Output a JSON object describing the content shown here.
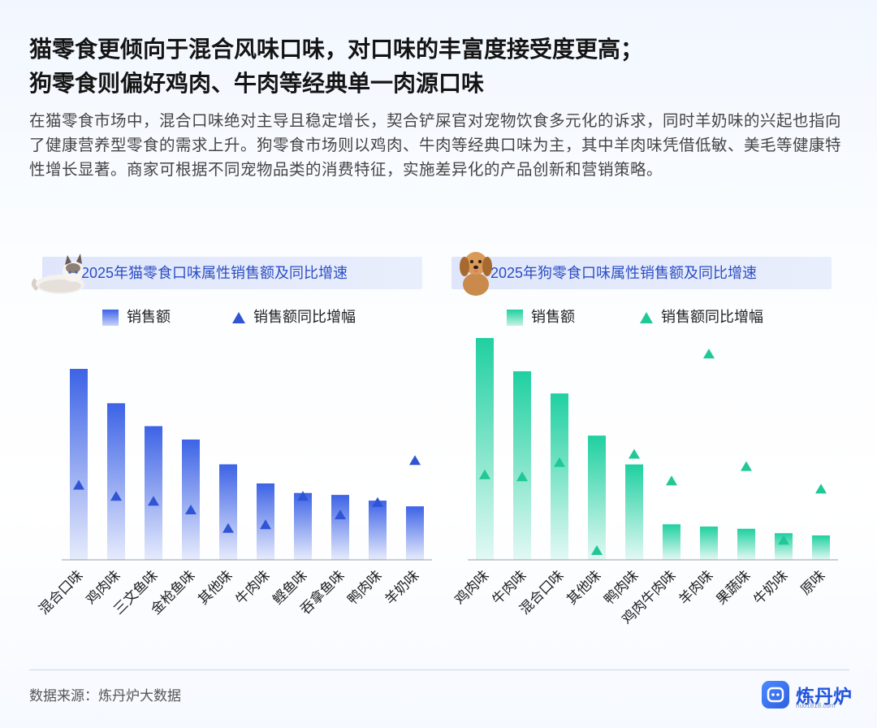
{
  "title_line1": "猫零食更倾向于混合风味口味，对口味的丰富度接受度更高；",
  "title_line2": "狗零食则偏好鸡肉、牛肉等经典单一肉源口味",
  "description": "在猫零食市场中，混合口味绝对主导且稳定增长，契合铲屎官对宠物饮食多元化的诉求，同时羊奶味的兴起也指向了健康营养型零食的需求上升。狗零食市场则以鸡肉、牛肉等经典口味为主，其中羊肉味凭借低敏、美毛等健康特性增长显著。商家可根据不同宠物品类的消费特征，实施差异化的产品创新和营销策略。",
  "source": "数据来源：炼丹炉大数据",
  "logo_text": "炼丹炉",
  "logo_url": "huo1818.com",
  "colors": {
    "cat_bar": "#3d63e6",
    "dog_bar": "#1fd0a0",
    "cat_marker": "#2f55d4",
    "dog_marker": "#20c896"
  },
  "chart_data": [
    {
      "type": "bar",
      "title": "2025年猫零食口味属性销售额及同比增速",
      "categories": [
        "混合口味",
        "鸡肉味",
        "三文鱼味",
        "金枪鱼味",
        "其他味",
        "牛肉味",
        "鲣鱼味",
        "吞拿鱼味",
        "鸭肉味",
        "羊奶味"
      ],
      "series": [
        {
          "name": "销售额",
          "kind": "bar",
          "values": [
            100,
            82,
            70,
            63,
            50,
            40,
            35,
            34,
            31,
            28
          ]
        },
        {
          "name": "销售额同比增幅",
          "kind": "marker",
          "values": [
            45,
            36,
            32,
            25,
            10,
            13,
            36,
            21,
            31,
            65
          ]
        }
      ],
      "legend": "top",
      "grid": false
    },
    {
      "type": "bar",
      "title": "2025年狗零食口味属性销售额及同比增速",
      "categories": [
        "鸡肉味",
        "牛肉味",
        "混合口味",
        "其他味",
        "鸭肉味",
        "鸡肉牛肉味",
        "羊肉味",
        "果蔬味",
        "牛奶味",
        "原味"
      ],
      "series": [
        {
          "name": "销售额",
          "kind": "bar",
          "values": [
            100,
            85,
            75,
            56,
            43,
            16,
            15,
            14,
            12,
            11
          ]
        },
        {
          "name": "销售额同比增幅",
          "kind": "marker",
          "values": [
            37,
            36,
            43,
            0,
            47,
            34,
            96,
            41,
            5,
            30
          ]
        }
      ],
      "legend": "top",
      "grid": false
    }
  ]
}
